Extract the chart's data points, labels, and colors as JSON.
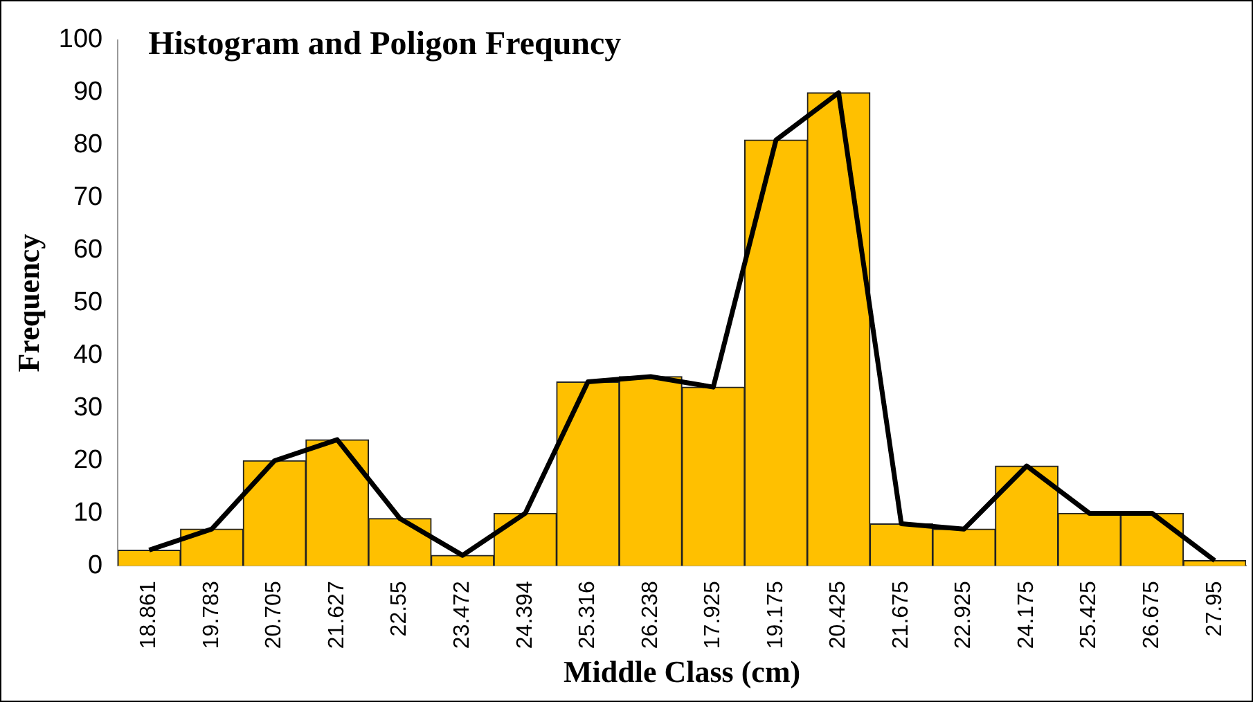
{
  "chart_data": {
    "type": "bar",
    "title": "Histogram and Poligon Frequncy",
    "xlabel": "Middle Class (cm)",
    "ylabel": "Frequency",
    "categories": [
      "18.861",
      "19.783",
      "20.705",
      "21.627",
      "22.55",
      "23.472",
      "24.394",
      "25.316",
      "26.238",
      "17.925",
      "19.175",
      "20.425",
      "21.675",
      "22.925",
      "24.175",
      "25.425",
      "26.675",
      "27.95"
    ],
    "series": [
      {
        "color": "#ffc000",
        "values": [
          3,
          7,
          20,
          24,
          9,
          2,
          10,
          35,
          36,
          34,
          81,
          90,
          8,
          7,
          19,
          10,
          10,
          1
        ]
      },
      {
        "type": "line",
        "color": "#000000",
        "values": [
          3,
          7,
          20,
          24,
          9,
          2,
          10,
          35,
          36,
          34,
          81,
          90,
          8,
          7,
          19,
          10,
          10,
          1
        ]
      }
    ],
    "ylim": [
      0,
      100
    ],
    "yticks": [
      0,
      10,
      20,
      30,
      40,
      50,
      60,
      70,
      80,
      90,
      100
    ],
    "grid": false,
    "legend": false,
    "marker": "none",
    "line_style": "solid"
  }
}
